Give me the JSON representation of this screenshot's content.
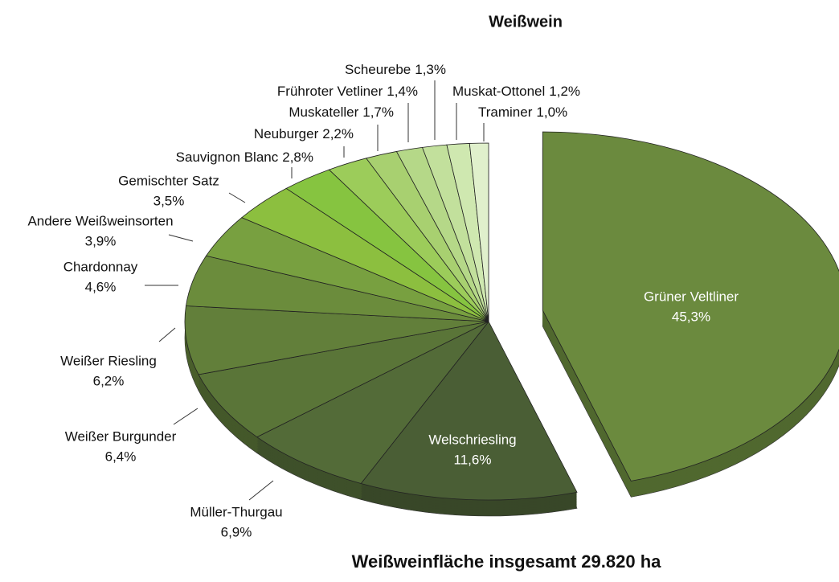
{
  "chart_data": {
    "type": "pie",
    "title": "Weißwein",
    "caption": "Weißweinfläche insgesamt 29.820 ha",
    "categories": [
      "Grüner Veltliner",
      "Welschriesling",
      "Müller-Thurgau",
      "Weißer Burgunder",
      "Weißer Riesling",
      "Chardonnay",
      "Andere Weißweinsorten",
      "Gemischter Satz",
      "Sauvignon Blanc",
      "Neuburger",
      "Muskateller",
      "Frühroter Vetliner",
      "Scheurebe",
      "Muskat-Ottonel",
      "Traminer"
    ],
    "values": [
      45.3,
      11.6,
      6.9,
      6.4,
      6.2,
      4.6,
      3.9,
      3.5,
      2.8,
      2.2,
      1.7,
      1.4,
      1.3,
      1.2,
      1.0
    ],
    "value_labels": [
      "45,3%",
      "11,6%",
      "6,9%",
      "6,4%",
      "6,2%",
      "4,6%",
      "3,9%",
      "3,5%",
      "2,8%",
      "2,2%",
      "1,7%",
      "1,4%",
      "1,3%",
      "1,2%",
      "1,0%"
    ],
    "colors": [
      "#6b8a3e",
      "#4a5e35",
      "#536b38",
      "#5a7538",
      "#627f3a",
      "#6b8c3c",
      "#78a040",
      "#8cbf3f",
      "#86c440",
      "#9ccc5a",
      "#a8d070",
      "#b5d888",
      "#c2e09c",
      "#cfe8b0",
      "#e0f0cc"
    ]
  }
}
